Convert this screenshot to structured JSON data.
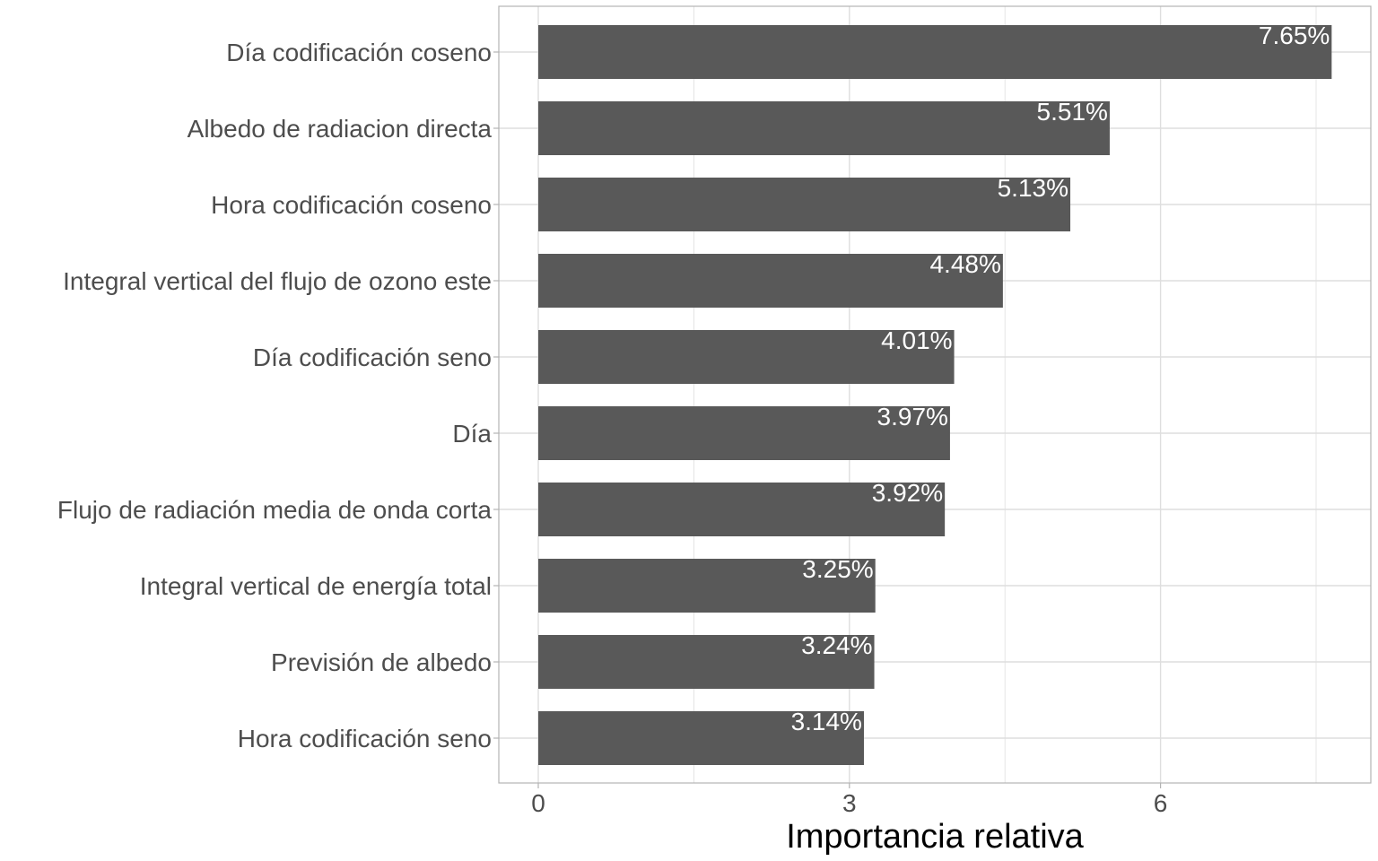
{
  "chart_data": {
    "type": "bar",
    "orientation": "horizontal",
    "categories": [
      "Día codificación coseno",
      "Albedo de radiacion directa",
      "Hora codificación coseno",
      "Integral vertical del flujo de ozono este",
      "Día codificación seno",
      "Día",
      "Flujo de radiación media de onda corta",
      "Integral vertical de energía total",
      "Previsión de albedo",
      "Hora codificación seno"
    ],
    "values": [
      7.65,
      5.51,
      5.13,
      4.48,
      4.01,
      3.97,
      3.92,
      3.25,
      3.24,
      3.14
    ],
    "value_labels": [
      "7.65%",
      "5.51%",
      "5.13%",
      "4.48%",
      "4.01%",
      "3.97%",
      "3.92%",
      "3.25%",
      "3.24%",
      "3.14%"
    ],
    "xlabel": "Importancia relativa",
    "ylabel": "",
    "x_ticks": [
      0,
      3,
      6
    ],
    "x_tick_labels": [
      "0",
      "3",
      "6"
    ],
    "grid": true,
    "legend": "none",
    "colors": {
      "bar": "#595959",
      "grid": "#dedede",
      "panel_border": "#b3b3b3",
      "bar_label": "#ffffff"
    }
  }
}
